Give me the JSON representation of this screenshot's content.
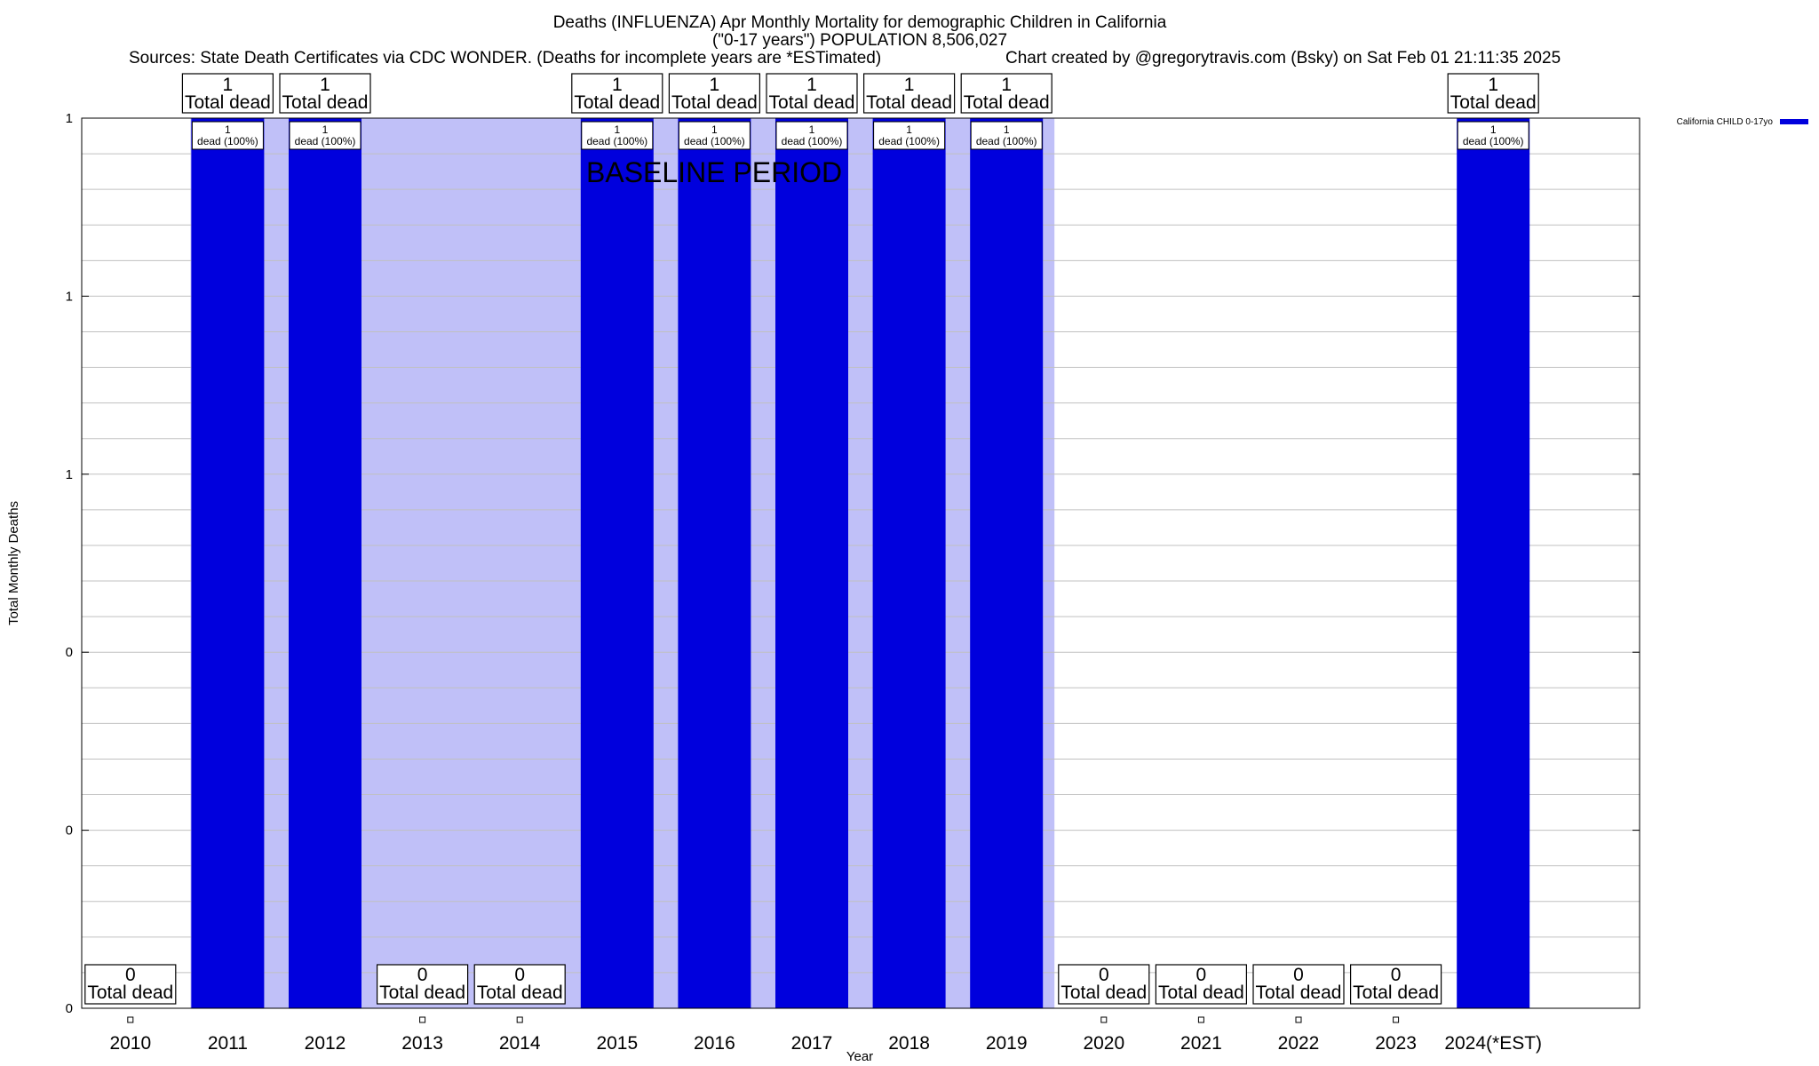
{
  "header": {
    "title_line1": "Deaths (INFLUENZA) Apr Monthly Mortality for demographic Children in California",
    "title_line2": "(\"0-17 years\") POPULATION 8,506,027",
    "sources": "Sources: State Death Certificates via CDC WONDER. (Deaths for incomplete years are *ESTimated)",
    "credit": "Chart created by @gregorytravis.com (Bsky) on Sat Feb 01 21:11:35 2025"
  },
  "chart_data": {
    "type": "bar",
    "categories": [
      "2010",
      "2011",
      "2012",
      "2013",
      "2014",
      "2015",
      "2016",
      "2017",
      "2018",
      "2019",
      "2020",
      "2021",
      "2022",
      "2023",
      "2024(*EST)"
    ],
    "series": [
      {
        "name": "California CHILD 0-17yo",
        "values": [
          0,
          1,
          1,
          0,
          0,
          1,
          1,
          1,
          1,
          1,
          0,
          0,
          0,
          0,
          1
        ]
      }
    ],
    "xlabel": "Year",
    "ylabel": "Total Monthly Deaths",
    "ylim": [
      0,
      1
    ],
    "y_tick_labels": [
      "0",
      "0",
      "0",
      "1",
      "1",
      "1"
    ],
    "y_tick_values": [
      0,
      0.2,
      0.4,
      0.6,
      0.8,
      1.0
    ],
    "top_box_label": "Total dead",
    "inner_label_suffix": "dead (100%)",
    "baseline_label": "BASELINE PERIOD",
    "baseline_span": [
      "2011",
      "2019"
    ],
    "grid": true,
    "legend_position": "top-right",
    "colors": {
      "bar": "#0000dd",
      "baseline_shade": "#c0c0f8",
      "grid": "#c0c0c0"
    }
  }
}
